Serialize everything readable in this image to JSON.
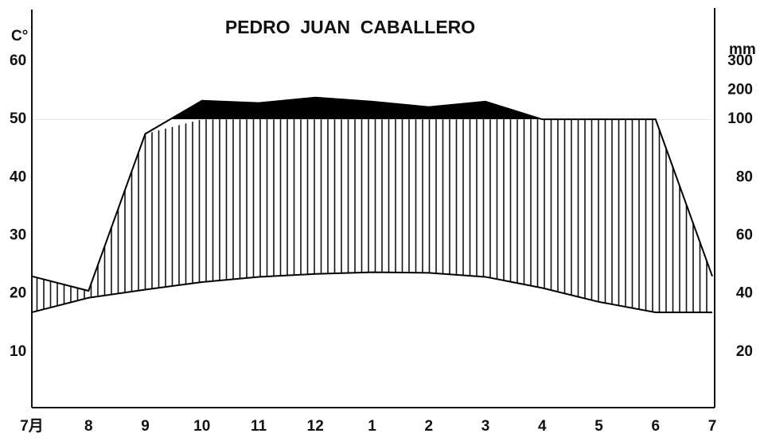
{
  "chart_data": {
    "type": "climate",
    "title": "PEDRO  JUAN  CABALLERO",
    "y_label": "C°",
    "y2_label": "mm",
    "categories": [
      "7月",
      "8",
      "9",
      "10",
      "11",
      "12",
      "1",
      "2",
      "3",
      "4",
      "5",
      "6",
      "7"
    ],
    "series": [
      {
        "color": "#000000",
        "values": [
          16.8,
          19.3,
          20.7,
          22.0,
          22.9,
          23.4,
          23.7,
          23.6,
          22.9,
          21.0,
          18.6,
          16.8,
          16.8
        ]
      },
      {
        "color": "#000000",
        "axis": "y2",
        "values": [
          46,
          41,
          95,
          164,
          156,
          175,
          161,
          142,
          161,
          100,
          100,
          100,
          46
        ]
      }
    ],
    "ylim": [
      0,
      60
    ],
    "yticks": [
      10,
      20,
      30,
      40,
      50,
      60
    ],
    "y2lim": [
      0,
      300
    ],
    "y2ticks": [
      20,
      40,
      60,
      80,
      100,
      200,
      300
    ]
  }
}
